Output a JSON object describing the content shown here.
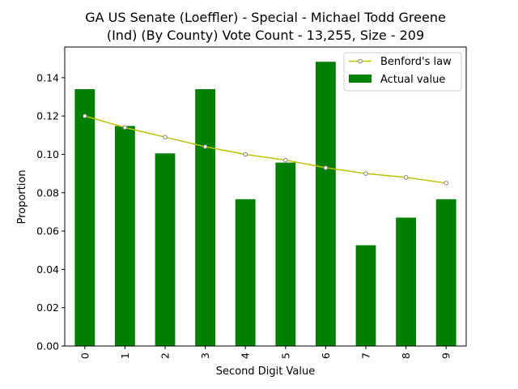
{
  "chart_data": {
    "type": "bar",
    "title": "GA US Senate (Loeffler) - Special - Michael Todd Greene",
    "subtitle": "(Ind) (By County) Vote Count - 13,255, Size - 209",
    "xlabel": "Second Digit Value",
    "ylabel": "Proportion",
    "categories": [
      "0",
      "1",
      "2",
      "3",
      "4",
      "5",
      "6",
      "7",
      "8",
      "9"
    ],
    "ylim": [
      0,
      0.156
    ],
    "yticks": [
      0.0,
      0.02,
      0.04,
      0.06,
      0.08,
      0.1,
      0.12,
      0.14
    ],
    "ytick_labels": [
      "0.00",
      "0.02",
      "0.04",
      "0.06",
      "0.08",
      "0.10",
      "0.12",
      "0.14"
    ],
    "grid": false,
    "legend_position": "top-right",
    "series": [
      {
        "name": "Actual value",
        "type": "bar",
        "color": "#008000",
        "values": [
          0.134,
          0.1148,
          0.1005,
          0.134,
          0.0766,
          0.0957,
          0.1483,
          0.0526,
          0.067,
          0.0766
        ]
      },
      {
        "name": "Benford's law",
        "type": "line",
        "color": "#bfbf00",
        "marker_edge_color": "#808080",
        "values": [
          0.12,
          0.114,
          0.109,
          0.104,
          0.1,
          0.097,
          0.093,
          0.09,
          0.088,
          0.085
        ]
      }
    ]
  }
}
